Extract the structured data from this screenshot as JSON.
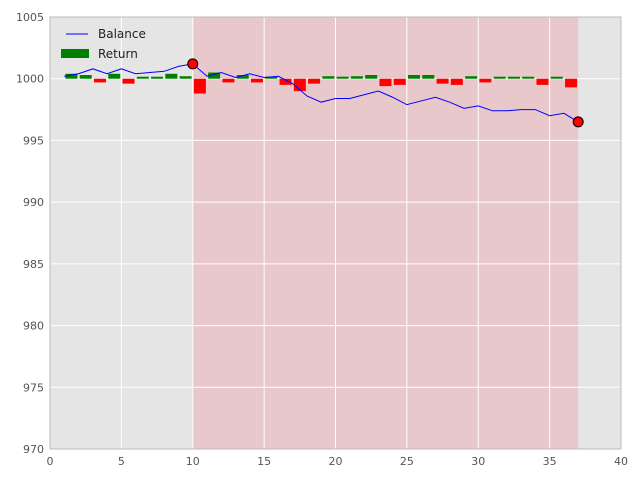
{
  "chart_data": {
    "type": "line",
    "title": "",
    "xlabel": "",
    "ylabel": "",
    "xlim": [
      0,
      40
    ],
    "ylim": [
      970,
      1005
    ],
    "xticks": [
      "0",
      "5",
      "10",
      "15",
      "20",
      "25",
      "30",
      "35",
      "40"
    ],
    "yticks": [
      "970",
      "975",
      "980",
      "985",
      "990",
      "995",
      "1000",
      "1005"
    ],
    "grid": true,
    "legend_position": "top-left",
    "shaded_region": {
      "x_start": 10,
      "x_end": 37,
      "color": "#e8c8ca"
    },
    "series": [
      {
        "name": "Balance",
        "type": "line",
        "color": "#0000ff",
        "x": [
          1,
          2,
          3,
          4,
          5,
          6,
          7,
          8,
          9,
          10,
          11,
          12,
          13,
          14,
          15,
          16,
          17,
          18,
          19,
          20,
          21,
          22,
          23,
          24,
          25,
          26,
          27,
          28,
          29,
          30,
          31,
          32,
          33,
          34,
          35,
          36,
          37
        ],
        "y": [
          1000.2,
          1000.4,
          1000.8,
          1000.4,
          1000.8,
          1000.4,
          1000.5,
          1000.6,
          1001.0,
          1001.2,
          1000.2,
          1000.5,
          1000.1,
          1000.4,
          1000.1,
          1000.2,
          999.6,
          998.6,
          998.1,
          998.4,
          998.4,
          998.7,
          999.0,
          998.5,
          997.9,
          998.2,
          998.5,
          998.1,
          997.6,
          997.8,
          997.4,
          997.4,
          997.5,
          997.5,
          997.0,
          997.2,
          996.5
        ]
      },
      {
        "name": "Return",
        "type": "bar",
        "color_positive": "#008000",
        "color_negative": "#ff0000",
        "x": [
          1.5,
          2.5,
          3.5,
          4.5,
          5.5,
          6.5,
          7.5,
          8.5,
          9.5,
          10.5,
          11.5,
          12.5,
          13.5,
          14.5,
          15.5,
          16.5,
          17.5,
          18.5,
          19.5,
          20.5,
          21.5,
          22.5,
          23.5,
          24.5,
          25.5,
          26.5,
          27.5,
          28.5,
          29.5,
          30.5,
          31.5,
          32.5,
          33.5,
          34.5,
          35.5,
          36.5
        ],
        "values": [
          0.4,
          0.3,
          -0.3,
          0.4,
          -0.4,
          0.1,
          0.1,
          0.4,
          0.2,
          -1.2,
          0.5,
          -0.3,
          0.3,
          -0.3,
          0.1,
          -0.5,
          -1.0,
          -0.4,
          0.2,
          0.1,
          0.2,
          0.3,
          -0.6,
          -0.5,
          0.3,
          0.3,
          -0.4,
          -0.5,
          0.2,
          -0.3,
          0.1,
          0.1,
          0.05,
          -0.5,
          0.15,
          -0.7
        ]
      }
    ],
    "markers": [
      {
        "x": 10,
        "y": 1001.2,
        "color": "#ff0000"
      },
      {
        "x": 37,
        "y": 996.5,
        "color": "#ff0000"
      }
    ]
  }
}
